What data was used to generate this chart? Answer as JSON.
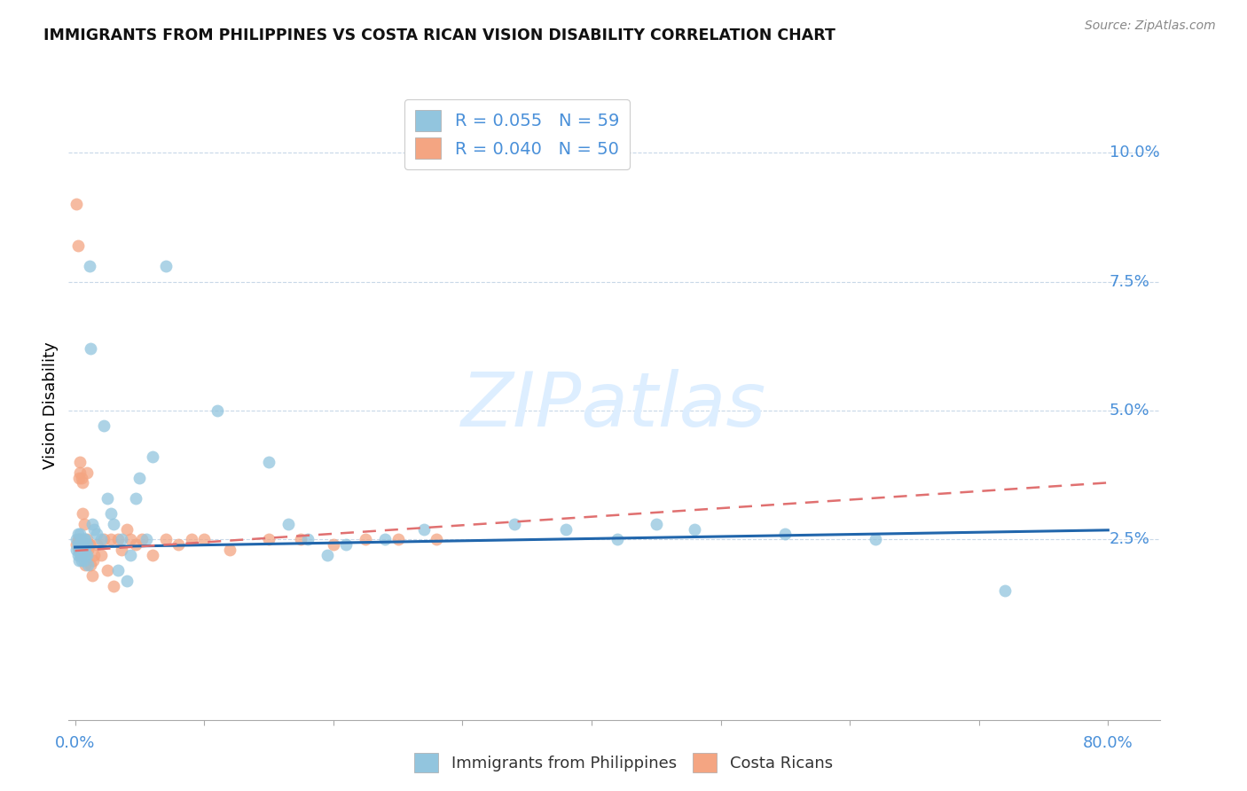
{
  "title": "IMMIGRANTS FROM PHILIPPINES VS COSTA RICAN VISION DISABILITY CORRELATION CHART",
  "source": "Source: ZipAtlas.com",
  "ylabel": "Vision Disability",
  "xlim": [
    -0.005,
    0.84
  ],
  "ylim": [
    -0.01,
    0.112
  ],
  "blue_R": 0.055,
  "blue_N": 59,
  "pink_R": 0.04,
  "pink_N": 50,
  "blue_color": "#92c5de",
  "pink_color": "#f4a582",
  "blue_line_color": "#2166ac",
  "pink_line_color": "#e07070",
  "watermark": "ZIPatlas",
  "watermark_color": "#ddeeff",
  "blue_x": [
    0.001,
    0.001,
    0.002,
    0.002,
    0.002,
    0.003,
    0.003,
    0.003,
    0.004,
    0.004,
    0.004,
    0.005,
    0.005,
    0.005,
    0.006,
    0.006,
    0.007,
    0.007,
    0.007,
    0.008,
    0.008,
    0.009,
    0.009,
    0.01,
    0.011,
    0.012,
    0.013,
    0.015,
    0.017,
    0.02,
    0.022,
    0.025,
    0.028,
    0.03,
    0.033,
    0.036,
    0.04,
    0.043,
    0.047,
    0.05,
    0.055,
    0.06,
    0.07,
    0.11,
    0.15,
    0.165,
    0.18,
    0.195,
    0.21,
    0.24,
    0.27,
    0.34,
    0.38,
    0.42,
    0.45,
    0.48,
    0.55,
    0.62,
    0.72
  ],
  "blue_y": [
    0.025,
    0.023,
    0.024,
    0.022,
    0.026,
    0.024,
    0.021,
    0.023,
    0.024,
    0.022,
    0.026,
    0.023,
    0.025,
    0.021,
    0.024,
    0.022,
    0.025,
    0.023,
    0.021,
    0.025,
    0.022,
    0.024,
    0.022,
    0.02,
    0.078,
    0.062,
    0.028,
    0.027,
    0.026,
    0.025,
    0.047,
    0.033,
    0.03,
    0.028,
    0.019,
    0.025,
    0.017,
    0.022,
    0.033,
    0.037,
    0.025,
    0.041,
    0.078,
    0.05,
    0.04,
    0.028,
    0.025,
    0.022,
    0.024,
    0.025,
    0.027,
    0.028,
    0.027,
    0.025,
    0.028,
    0.027,
    0.026,
    0.025,
    0.015
  ],
  "pink_x": [
    0.001,
    0.001,
    0.002,
    0.002,
    0.003,
    0.003,
    0.003,
    0.004,
    0.004,
    0.004,
    0.005,
    0.005,
    0.006,
    0.006,
    0.007,
    0.007,
    0.008,
    0.008,
    0.009,
    0.009,
    0.01,
    0.011,
    0.012,
    0.013,
    0.014,
    0.015,
    0.017,
    0.02,
    0.022,
    0.025,
    0.028,
    0.03,
    0.033,
    0.036,
    0.04,
    0.043,
    0.047,
    0.052,
    0.06,
    0.07,
    0.08,
    0.09,
    0.1,
    0.12,
    0.15,
    0.175,
    0.2,
    0.225,
    0.25,
    0.28
  ],
  "pink_y": [
    0.09,
    0.024,
    0.025,
    0.082,
    0.025,
    0.037,
    0.023,
    0.04,
    0.038,
    0.025,
    0.037,
    0.022,
    0.036,
    0.03,
    0.028,
    0.023,
    0.023,
    0.02,
    0.025,
    0.038,
    0.023,
    0.024,
    0.02,
    0.018,
    0.021,
    0.022,
    0.024,
    0.022,
    0.025,
    0.019,
    0.025,
    0.016,
    0.025,
    0.023,
    0.027,
    0.025,
    0.024,
    0.025,
    0.022,
    0.025,
    0.024,
    0.025,
    0.025,
    0.023,
    0.025,
    0.025,
    0.024,
    0.025,
    0.025,
    0.025
  ],
  "legend_blue_label": "R = 0.055   N = 59",
  "legend_pink_label": "R = 0.040   N = 50",
  "blue_line_x": [
    0.0,
    0.8
  ],
  "blue_line_y_start": 0.0235,
  "blue_line_y_end": 0.0268,
  "pink_line_x": [
    0.0,
    0.8
  ],
  "pink_line_y_start": 0.0228,
  "pink_line_y_end": 0.036,
  "grid_color": "#c8d8e8",
  "tick_color": "#4a90d9",
  "axis_color": "#aaaaaa",
  "ytick_positions": [
    0.025,
    0.05,
    0.075,
    0.1
  ],
  "ytick_labels": [
    "2.5%",
    "5.0%",
    "7.5%",
    "10.0%"
  ]
}
